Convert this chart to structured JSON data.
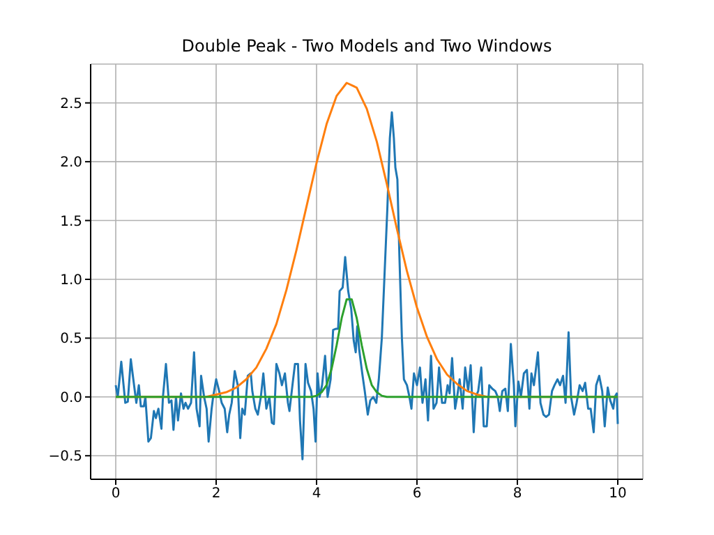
{
  "chart_data": {
    "type": "line",
    "title": "Double Peak - Two Models and Two Windows",
    "xlim": [
      -0.5,
      10.5
    ],
    "xticks": [
      0,
      2,
      4,
      6,
      8,
      10
    ],
    "ylim": [
      -0.7,
      2.83
    ],
    "yticks": [
      {
        "value": -0.5,
        "label": "−0.5"
      },
      {
        "value": 0,
        "label": "0.0"
      },
      0.5,
      {
        "value": 1,
        "label": "1.0"
      },
      1.5,
      {
        "value": 2,
        "label": "2.0"
      },
      2.5
    ],
    "grid": true,
    "marker": "none",
    "line_style": "solid",
    "series": [
      {
        "color": "#1f77b4",
        "x": [
          0.0,
          0.04,
          0.11,
          0.19,
          0.24,
          0.3,
          0.35,
          0.41,
          0.46,
          0.5,
          0.56,
          0.59,
          0.65,
          0.7,
          0.76,
          0.8,
          0.85,
          0.91,
          0.94,
          1.0,
          1.06,
          1.11,
          1.15,
          1.2,
          1.24,
          1.3,
          1.35,
          1.39,
          1.44,
          1.5,
          1.56,
          1.61,
          1.67,
          1.7,
          1.76,
          1.81,
          1.85,
          1.91,
          1.94,
          2.0,
          2.06,
          2.11,
          2.17,
          2.22,
          2.26,
          2.31,
          2.37,
          2.43,
          2.48,
          2.52,
          2.57,
          2.63,
          2.69,
          2.72,
          2.78,
          2.83,
          2.89,
          2.94,
          3.0,
          3.06,
          3.11,
          3.15,
          3.2,
          3.26,
          3.31,
          3.37,
          3.43,
          3.46,
          3.52,
          3.57,
          3.63,
          3.67,
          3.72,
          3.78,
          3.83,
          3.89,
          3.94,
          3.98,
          4.02,
          4.06,
          4.11,
          4.17,
          4.22,
          4.28,
          4.33,
          4.39,
          4.43,
          4.46,
          4.52,
          4.57,
          4.63,
          4.69,
          4.74,
          4.78,
          4.81,
          4.85,
          4.91,
          4.96,
          5.02,
          5.07,
          5.13,
          5.19,
          5.24,
          5.3,
          5.35,
          5.41,
          5.46,
          5.5,
          5.54,
          5.57,
          5.61,
          5.65,
          5.7,
          5.74,
          5.8,
          5.85,
          5.89,
          5.94,
          6.0,
          6.06,
          6.11,
          6.17,
          6.22,
          6.28,
          6.33,
          6.39,
          6.44,
          6.5,
          6.56,
          6.61,
          6.65,
          6.7,
          6.76,
          6.8,
          6.85,
          6.91,
          6.96,
          7.02,
          7.07,
          7.13,
          7.17,
          7.22,
          7.28,
          7.33,
          7.39,
          7.44,
          7.5,
          7.56,
          7.61,
          7.65,
          7.7,
          7.76,
          7.81,
          7.87,
          7.93,
          7.96,
          8.02,
          8.07,
          8.13,
          8.19,
          8.24,
          8.28,
          8.33,
          8.41,
          8.46,
          8.52,
          8.57,
          8.63,
          8.69,
          8.74,
          8.8,
          8.85,
          8.91,
          8.96,
          9.02,
          9.07,
          9.13,
          9.18,
          9.24,
          9.3,
          9.35,
          9.41,
          9.46,
          9.52,
          9.57,
          9.63,
          9.69,
          9.74,
          9.8,
          9.85,
          9.91,
          9.94,
          9.98,
          10.0
        ],
        "values": [
          0.1,
          0.0,
          0.3,
          -0.05,
          -0.04,
          0.32,
          0.15,
          -0.05,
          0.1,
          -0.08,
          -0.08,
          0.0,
          -0.38,
          -0.35,
          -0.12,
          -0.18,
          -0.1,
          -0.27,
          0.0,
          0.28,
          -0.05,
          -0.03,
          -0.28,
          0.0,
          -0.2,
          0.03,
          -0.1,
          -0.05,
          -0.1,
          -0.05,
          0.38,
          -0.1,
          -0.25,
          0.18,
          0.0,
          -0.1,
          -0.38,
          -0.1,
          0.0,
          0.15,
          0.05,
          -0.05,
          -0.1,
          -0.3,
          -0.15,
          -0.05,
          0.22,
          0.1,
          -0.35,
          -0.1,
          -0.15,
          0.18,
          0.2,
          0.05,
          -0.1,
          -0.15,
          0.0,
          0.2,
          -0.1,
          0.0,
          -0.22,
          -0.23,
          0.28,
          0.2,
          0.1,
          0.2,
          -0.05,
          -0.12,
          0.1,
          0.28,
          0.28,
          -0.2,
          -0.53,
          0.28,
          0.12,
          0.05,
          -0.1,
          -0.38,
          0.2,
          0.0,
          0.1,
          0.35,
          0.0,
          0.15,
          0.57,
          0.58,
          0.58,
          0.9,
          0.93,
          1.19,
          0.9,
          0.75,
          0.48,
          0.38,
          0.6,
          0.4,
          0.2,
          0.05,
          -0.15,
          -0.03,
          0.0,
          -0.05,
          0.15,
          0.5,
          1.0,
          1.6,
          2.2,
          2.42,
          2.2,
          1.95,
          1.85,
          1.2,
          0.5,
          0.15,
          0.1,
          0.0,
          -0.1,
          0.2,
          0.1,
          0.25,
          -0.05,
          0.15,
          -0.2,
          0.35,
          -0.1,
          -0.05,
          0.25,
          -0.05,
          -0.05,
          0.1,
          0.03,
          0.33,
          -0.1,
          0.0,
          0.15,
          -0.1,
          0.25,
          0.05,
          0.27,
          -0.3,
          0.0,
          0.05,
          0.25,
          -0.25,
          -0.25,
          0.1,
          0.07,
          0.05,
          0.0,
          -0.12,
          0.05,
          0.07,
          -0.12,
          0.45,
          0.1,
          -0.25,
          0.13,
          0.0,
          0.2,
          0.23,
          -0.1,
          0.2,
          0.1,
          0.38,
          -0.05,
          -0.15,
          -0.17,
          -0.15,
          0.05,
          0.1,
          0.15,
          0.1,
          0.18,
          -0.05,
          0.55,
          0.0,
          -0.15,
          -0.05,
          0.1,
          0.05,
          0.12,
          -0.1,
          -0.1,
          -0.3,
          0.1,
          0.18,
          0.05,
          -0.25,
          0.08,
          -0.03,
          -0.1,
          0.0,
          0.03,
          -0.23
        ]
      },
      {
        "color": "#ff7f0e",
        "x": [
          0,
          1.8,
          2.0,
          2.2,
          2.4,
          2.6,
          2.8,
          3.0,
          3.2,
          3.4,
          3.6,
          3.8,
          4.0,
          4.2,
          4.4,
          4.6,
          4.8,
          5.0,
          5.2,
          5.4,
          5.6,
          5.8,
          6.0,
          6.2,
          6.4,
          6.6,
          6.8,
          7.0,
          7.2,
          7.4,
          10
        ],
        "values": [
          0,
          0,
          0.02,
          0.04,
          0.08,
          0.15,
          0.25,
          0.41,
          0.62,
          0.91,
          1.25,
          1.62,
          1.99,
          2.32,
          2.56,
          2.67,
          2.63,
          2.45,
          2.17,
          1.81,
          1.43,
          1.07,
          0.76,
          0.51,
          0.32,
          0.19,
          0.11,
          0.05,
          0.02,
          0,
          0
        ]
      },
      {
        "color": "#2ca02c",
        "x": [
          0,
          3.9,
          4.0,
          4.1,
          4.2,
          4.3,
          4.4,
          4.5,
          4.6,
          4.7,
          4.8,
          4.9,
          5.0,
          5.1,
          5.2,
          5.3,
          5.4,
          10
        ],
        "values": [
          0,
          0,
          0.01,
          0.04,
          0.1,
          0.24,
          0.44,
          0.67,
          0.83,
          0.83,
          0.67,
          0.44,
          0.24,
          0.1,
          0.04,
          0.01,
          0,
          0
        ]
      }
    ]
  }
}
